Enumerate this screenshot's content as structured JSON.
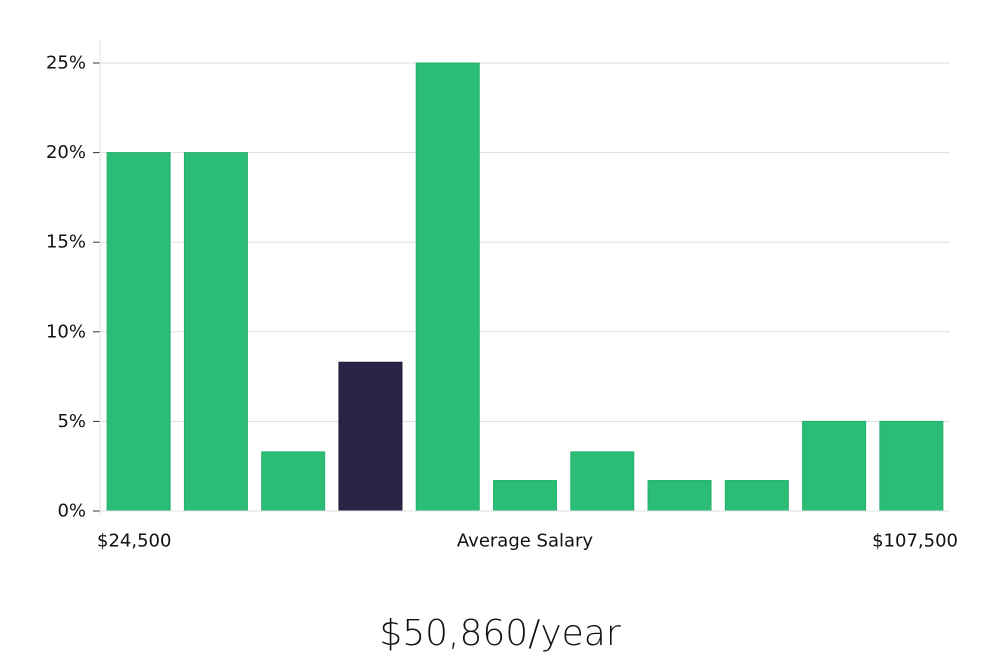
{
  "chart_data": {
    "type": "bar",
    "ylim": [
      0,
      25
    ],
    "yticks": [
      {
        "value": 0,
        "label": "0%"
      },
      {
        "value": 5,
        "label": "5%"
      },
      {
        "value": 10,
        "label": "10%"
      },
      {
        "value": 15,
        "label": "15%"
      },
      {
        "value": 20,
        "label": "20%"
      },
      {
        "value": 25,
        "label": "25%"
      }
    ],
    "values": [
      20,
      20,
      3.3,
      8.3,
      25,
      1.7,
      3.3,
      1.7,
      1.7,
      5,
      5
    ],
    "highlight_index": 3,
    "x_labels": {
      "left": "$24,500",
      "center": "Average Salary",
      "right": "$107,500"
    },
    "grid": true,
    "colors": {
      "bar": "#2bbd76",
      "highlight": "#292446",
      "grid": "#dddddd",
      "axis": "#e2e2e2"
    }
  },
  "salary_text": "$50,860/year"
}
